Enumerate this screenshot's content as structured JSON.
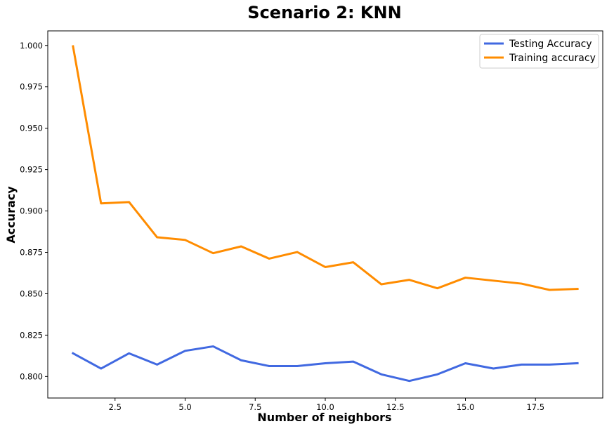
{
  "chart_data": {
    "type": "line",
    "title": "Scenario 2: KNN",
    "xlabel": "Number of neighbors",
    "ylabel": "Accuracy",
    "xlim": [
      0.1,
      19.9
    ],
    "ylim": [
      0.787,
      1.0088
    ],
    "x": [
      1,
      2,
      3,
      4,
      5,
      6,
      7,
      8,
      9,
      10,
      11,
      12,
      13,
      14,
      15,
      16,
      17,
      18,
      19
    ],
    "xticks": [
      2.5,
      5.0,
      7.5,
      10.0,
      12.5,
      15.0,
      17.5
    ],
    "xtick_labels": [
      "2.5",
      "5.0",
      "7.5",
      "10.0",
      "12.5",
      "15.0",
      "17.5"
    ],
    "yticks": [
      0.8,
      0.825,
      0.85,
      0.875,
      0.9,
      0.925,
      0.95,
      0.975,
      1.0
    ],
    "ytick_labels": [
      "0.800",
      "0.825",
      "0.850",
      "0.875",
      "0.900",
      "0.925",
      "0.950",
      "0.975",
      "1.000"
    ],
    "grid": false,
    "legend_position": "top-right",
    "series": [
      {
        "name": "Testing Accuracy",
        "color": "#4169E1",
        "values": [
          0.814,
          0.8048,
          0.814,
          0.8072,
          0.8155,
          0.8182,
          0.8098,
          0.8063,
          0.8063,
          0.808,
          0.809,
          0.8013,
          0.7973,
          0.8013,
          0.808,
          0.8048,
          0.8072,
          0.8072,
          0.808
        ]
      },
      {
        "name": "Training accuracy",
        "color": "#FF8C00",
        "values": [
          0.9995,
          0.9046,
          0.9054,
          0.8841,
          0.8825,
          0.8745,
          0.8786,
          0.8712,
          0.8752,
          0.8661,
          0.869,
          0.8557,
          0.8584,
          0.8533,
          0.8597,
          0.8579,
          0.8561,
          0.8523,
          0.8529
        ]
      }
    ]
  }
}
